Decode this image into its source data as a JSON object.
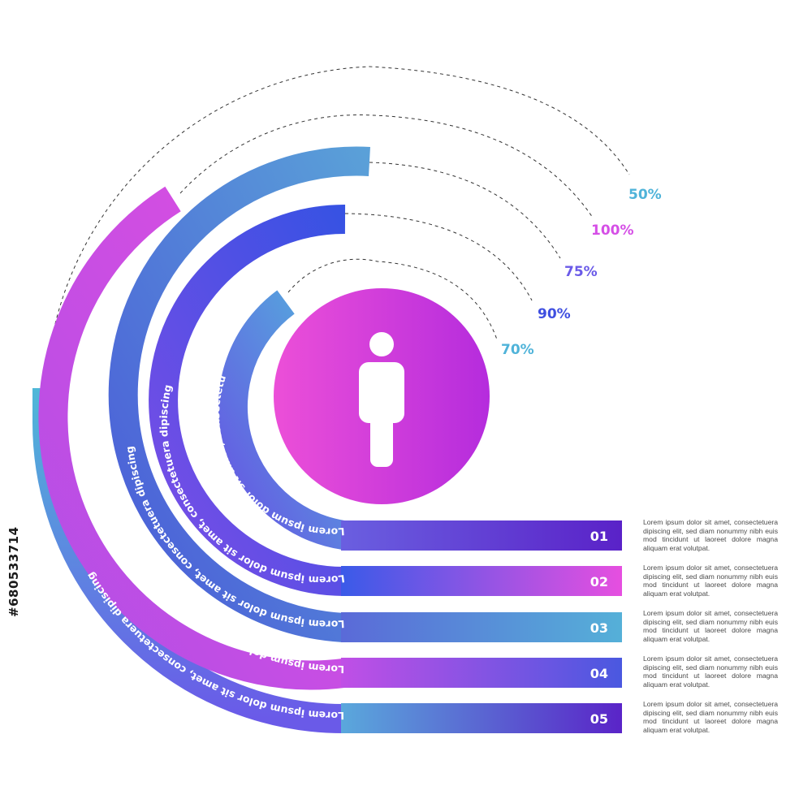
{
  "items": [
    {
      "number": "01",
      "percent": "70%",
      "arc_text": "Lorem ipsum dolor sit amet, consectetu",
      "color": "#4fb3d9",
      "description": "Lorem ipsum dolor sit amet, consectetuera dipiscing elit, sed diam nonummy nibh euis mod tincidunt ut laoreet dolore magna aliquam erat volutpat."
    },
    {
      "number": "02",
      "percent": "90%",
      "arc_text": "Lorem ipsum dolor sit amet, consectetuera dipiscing",
      "color": "#3f4fe0",
      "description": "Lorem ipsum dolor sit amet, consectetuera dipiscing elit, sed diam nonummy nibh euis mod tincidunt ut laoreet dolore magna aliquam erat volutpat."
    },
    {
      "number": "03",
      "percent": "75%",
      "arc_text": "Lorem ipsum dolor sit amet, consectetuera dipiscing",
      "color": "#6a5ae8",
      "description": "Lorem ipsum dolor sit amet, consectetuera dipiscing elit, sed diam nonummy nibh euis mod tincidunt ut laoreet dolore magna aliquam erat volutpat."
    },
    {
      "number": "04",
      "percent": "100%",
      "arc_text": "Lorem ipsum dolor sit amet, consectetuera dipiscing",
      "color": "#d54fe6",
      "description": "Lorem ipsum dolor sit amet, consectetuera dipiscing elit, sed diam nonummy nibh euis mod tincidunt ut laoreet dolore magna aliquam erat volutpat."
    },
    {
      "number": "05",
      "percent": "50%",
      "arc_text": "Lorem ipsum dolor sit amet, consectetuera dipiscing",
      "color": "#58b4d8",
      "description": "Lorem ipsum dolor sit amet, consectetuera dipiscing elit, sed diam nonummy nibh euis mod tincidunt ut laoreet dolore magna aliquam erat volutpat."
    }
  ],
  "center_icon": "person-icon",
  "watermark": "#680533714"
}
